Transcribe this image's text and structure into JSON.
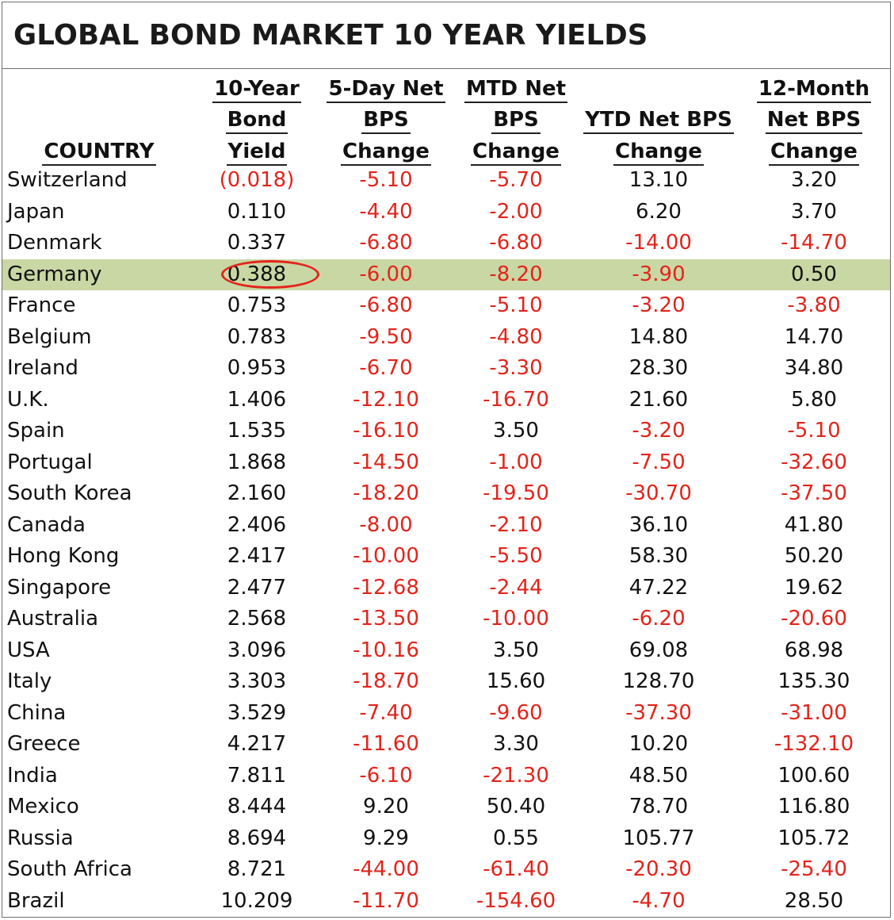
{
  "title": "GLOBAL BOND MARKET 10 YEAR YIELDS",
  "colors": {
    "negative": "#e3241b",
    "highlight_row": "#c9d7a4",
    "circle": "#e3241b"
  },
  "headers": [
    {
      "lines": [
        "COUNTRY"
      ]
    },
    {
      "lines": [
        "10-Year",
        "Bond",
        "Yield"
      ]
    },
    {
      "lines": [
        "5-Day Net",
        "BPS",
        "Change"
      ]
    },
    {
      "lines": [
        "MTD Net",
        "BPS",
        "Change"
      ]
    },
    {
      "lines": [
        "YTD Net BPS",
        "Change"
      ]
    },
    {
      "lines": [
        "12-Month",
        "Net BPS",
        "Change"
      ]
    }
  ],
  "highlighted_country": "Germany",
  "rows": [
    {
      "country": "Switzerland",
      "yield": "(0.018)",
      "d5": "-5.10",
      "mtd": "-5.70",
      "ytd": "13.10",
      "m12": "3.20"
    },
    {
      "country": "Japan",
      "yield": "0.110",
      "d5": "-4.40",
      "mtd": "-2.00",
      "ytd": "6.20",
      "m12": "3.70"
    },
    {
      "country": "Denmark",
      "yield": "0.337",
      "d5": "-6.80",
      "mtd": "-6.80",
      "ytd": "-14.00",
      "m12": "-14.70"
    },
    {
      "country": "Germany",
      "yield": "0.388",
      "d5": "-6.00",
      "mtd": "-8.20",
      "ytd": "-3.90",
      "m12": "0.50"
    },
    {
      "country": "France",
      "yield": "0.753",
      "d5": "-6.80",
      "mtd": "-5.10",
      "ytd": "-3.20",
      "m12": "-3.80"
    },
    {
      "country": "Belgium",
      "yield": "0.783",
      "d5": "-9.50",
      "mtd": "-4.80",
      "ytd": "14.80",
      "m12": "14.70"
    },
    {
      "country": "Ireland",
      "yield": "0.953",
      "d5": "-6.70",
      "mtd": "-3.30",
      "ytd": "28.30",
      "m12": "34.80"
    },
    {
      "country": "U.K.",
      "yield": "1.406",
      "d5": "-12.10",
      "mtd": "-16.70",
      "ytd": "21.60",
      "m12": "5.80"
    },
    {
      "country": "Spain",
      "yield": "1.535",
      "d5": "-16.10",
      "mtd": "3.50",
      "ytd": "-3.20",
      "m12": "-5.10"
    },
    {
      "country": "Portugal",
      "yield": "1.868",
      "d5": "-14.50",
      "mtd": "-1.00",
      "ytd": "-7.50",
      "m12": "-32.60"
    },
    {
      "country": "South Korea",
      "yield": "2.160",
      "d5": "-18.20",
      "mtd": "-19.50",
      "ytd": "-30.70",
      "m12": "-37.50"
    },
    {
      "country": "Canada",
      "yield": "2.406",
      "d5": "-8.00",
      "mtd": "-2.10",
      "ytd": "36.10",
      "m12": "41.80"
    },
    {
      "country": "Hong Kong",
      "yield": "2.417",
      "d5": "-10.00",
      "mtd": "-5.50",
      "ytd": "58.30",
      "m12": "50.20"
    },
    {
      "country": "Singapore",
      "yield": "2.477",
      "d5": "-12.68",
      "mtd": "-2.44",
      "ytd": "47.22",
      "m12": "19.62"
    },
    {
      "country": "Australia",
      "yield": "2.568",
      "d5": "-13.50",
      "mtd": "-10.00",
      "ytd": "-6.20",
      "m12": "-20.60"
    },
    {
      "country": "USA",
      "yield": "3.096",
      "d5": "-10.16",
      "mtd": "3.50",
      "ytd": "69.08",
      "m12": "68.98"
    },
    {
      "country": "Italy",
      "yield": "3.303",
      "d5": "-18.70",
      "mtd": "15.60",
      "ytd": "128.70",
      "m12": "135.30"
    },
    {
      "country": "China",
      "yield": "3.529",
      "d5": "-7.40",
      "mtd": "-9.60",
      "ytd": "-37.30",
      "m12": "-31.00"
    },
    {
      "country": "Greece",
      "yield": "4.217",
      "d5": "-11.60",
      "mtd": "3.30",
      "ytd": "10.20",
      "m12": "-132.10"
    },
    {
      "country": "India",
      "yield": "7.811",
      "d5": "-6.10",
      "mtd": "-21.30",
      "ytd": "48.50",
      "m12": "100.60"
    },
    {
      "country": "Mexico",
      "yield": "8.444",
      "d5": "9.20",
      "mtd": "50.40",
      "ytd": "78.70",
      "m12": "116.80"
    },
    {
      "country": "Russia",
      "yield": "8.694",
      "d5": "9.29",
      "mtd": "0.55",
      "ytd": "105.77",
      "m12": "105.72"
    },
    {
      "country": "South Africa",
      "yield": "8.721",
      "d5": "-44.00",
      "mtd": "-61.40",
      "ytd": "-20.30",
      "m12": "-25.40"
    },
    {
      "country": "Brazil",
      "yield": "10.209",
      "d5": "-11.70",
      "mtd": "-154.60",
      "ytd": "-4.70",
      "m12": "28.50"
    }
  ]
}
